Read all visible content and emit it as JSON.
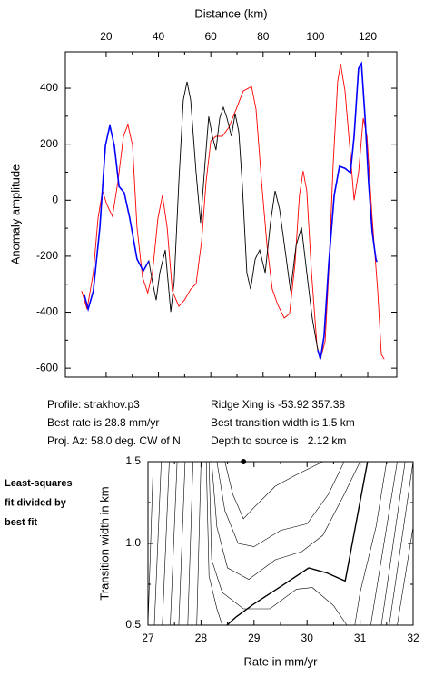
{
  "chart_data": [
    {
      "type": "line",
      "xlabel": "Distance (km)",
      "ylabel": "Anomaly amplitude",
      "xlim": [
        4.4,
        131.1
      ],
      "ylim": [
        -632,
        530
      ],
      "xticks": [
        20,
        40,
        60,
        80,
        100,
        120
      ],
      "yticks": [
        -600,
        -400,
        -200,
        0,
        200,
        400
      ],
      "series": [
        {
          "color": "#ff0000",
          "x": [
            10.6,
            12.7,
            15.1,
            16.9,
            18.6,
            20.3,
            22.4,
            24.5,
            26.6,
            28.3,
            30.1,
            31.8,
            33.9,
            35.9,
            37.7,
            39.8,
            41.5,
            43.3,
            45.3,
            47.8,
            49.9,
            52.3,
            54.4,
            56.5,
            58.2,
            60.0,
            62.0,
            64.4,
            66.9,
            69.7,
            72.4,
            75.6,
            77.3,
            79.4,
            81.5,
            83.5,
            85.6,
            88.1,
            90.1,
            92.2,
            93.9,
            95.3,
            96.7,
            98.5,
            100.6,
            101.9,
            103.7,
            105.1,
            106.8,
            108.5,
            109.6,
            111.3,
            113.1,
            114.8,
            116.5,
            118.3,
            119.7,
            121.7,
            123.8,
            125.2,
            126.3
          ],
          "values": [
            -324,
            -389,
            -259,
            -64,
            33,
            -16,
            -58,
            66,
            228,
            270,
            195,
            -97,
            -275,
            -331,
            -259,
            -64,
            17,
            -97,
            -324,
            -379,
            -357,
            -318,
            -298,
            -145,
            66,
            212,
            228,
            228,
            260,
            325,
            390,
            406,
            325,
            66,
            -162,
            -318,
            -373,
            -421,
            -405,
            -227,
            17,
            104,
            33,
            -259,
            -519,
            -568,
            -503,
            -259,
            131,
            423,
            488,
            390,
            195,
            0,
            98,
            293,
            228,
            -64,
            -324,
            -551,
            -568
          ]
        },
        {
          "color": "#000000",
          "x": [
            11.7,
            13.1,
            15.1,
            17.6,
            19.7,
            21.4,
            23.1,
            24.9,
            26.9,
            29.0,
            31.8,
            34.2,
            36.3,
            37.7,
            39.1,
            40.5,
            42.6,
            44.7,
            46.0,
            47.8,
            49.5,
            50.9,
            52.3,
            54.4,
            56.1,
            57.8,
            59.2,
            60.6,
            62.0,
            63.4,
            64.8,
            66.2,
            67.9,
            69.3,
            70.7,
            72.1,
            73.8,
            75.2,
            77.0,
            78.7,
            80.8,
            82.8,
            84.6,
            86.3,
            88.4,
            90.5,
            92.6,
            94.7,
            96.7,
            98.8,
            100.9,
            101.9,
            103.3,
            105.1,
            107.2,
            109.2,
            111.3,
            113.4,
            114.8,
            116.5,
            117.6,
            119.0,
            120.3,
            121.7,
            123.1,
            123.5
          ],
          "values": [
            -340,
            -389,
            -324,
            -97,
            195,
            267,
            195,
            49,
            27,
            -64,
            -210,
            -253,
            -217,
            -292,
            -357,
            -259,
            -178,
            -399,
            -292,
            66,
            358,
            423,
            358,
            98,
            -81,
            131,
            299,
            228,
            179,
            293,
            332,
            293,
            228,
            309,
            244,
            49,
            -259,
            -318,
            -210,
            -178,
            -259,
            -81,
            33,
            -32,
            -178,
            -324,
            -162,
            -97,
            -259,
            -421,
            -535,
            -568,
            -486,
            -227,
            17,
            121,
            114,
            98,
            228,
            471,
            488,
            293,
            66,
            -113,
            -210,
            -220
          ]
        },
        {
          "color": "#0000ff",
          "x": [
            11.7,
            13.1,
            15.1,
            17.6,
            19.7,
            21.4,
            23.1,
            24.9,
            26.9,
            29.0,
            31.8,
            34.2,
            36.3,
            37.7,
            39.1,
            40.5,
            42.6,
            44.7,
            46.0,
            47.8,
            49.5,
            50.9,
            52.3,
            54.4,
            56.1,
            57.8,
            59.2,
            60.6,
            62.0,
            63.4,
            64.8,
            66.2,
            67.9,
            69.3,
            70.7,
            72.1,
            73.8,
            75.2,
            77.0,
            78.7,
            80.8,
            82.8,
            84.6,
            86.3,
            88.4,
            90.5,
            92.6,
            94.7,
            96.7,
            98.8,
            100.9,
            101.9,
            103.3,
            105.1,
            107.2,
            109.2,
            111.3,
            113.4,
            114.8,
            116.5,
            117.6,
            119.0,
            120.3,
            121.7,
            123.1,
            123.5
          ],
          "values": [
            -340,
            -389,
            -324,
            -97,
            195,
            267,
            195,
            49,
            27,
            -64,
            -210,
            -253,
            -217,
            null,
            null,
            null,
            null,
            null,
            null,
            null,
            null,
            null,
            null,
            null,
            null,
            null,
            null,
            null,
            null,
            null,
            null,
            null,
            null,
            null,
            null,
            null,
            null,
            null,
            null,
            null,
            null,
            null,
            null,
            null,
            null,
            null,
            null,
            null,
            null,
            null,
            -535,
            -568,
            -486,
            -227,
            17,
            121,
            114,
            98,
            228,
            471,
            488,
            293,
            66,
            -113,
            -210,
            -220
          ]
        }
      ],
      "annotations": [
        "Profile: strakhov.p3",
        "Best rate is 28.8 mm/yr",
        "Proj. Az: 58.0 deg. CW of N",
        "Ridge Xing is -53.92 357.38",
        "Best transition width is 1.5 km",
        "Depth to source is   2.12 km"
      ]
    },
    {
      "type": "contour",
      "xlabel": "Rate in mm/yr",
      "ylabel": "Transition width in km",
      "title_lines": [
        "Least-squares",
        "fit divided by",
        "best fit"
      ],
      "xlim": [
        27,
        32
      ],
      "ylim": [
        0.5,
        1.5
      ],
      "xticks": [
        27,
        28,
        29,
        30,
        31,
        32
      ],
      "yticks": [
        0.5,
        {
          "value": 1,
          "label": "1.0"
        },
        1.5
      ],
      "points": {
        "x": [
          28.8
        ],
        "y": [
          1.5
        ]
      },
      "contours": [
        {
          "x": [
            27.1,
            27.0
          ],
          "y": [
            1.5,
            0.5
          ]
        },
        {
          "x": [
            27.25,
            27.12
          ],
          "y": [
            1.5,
            0.5
          ]
        },
        {
          "x": [
            27.4,
            27.27
          ],
          "y": [
            1.5,
            0.5
          ]
        },
        {
          "x": [
            27.55,
            27.42
          ],
          "y": [
            1.5,
            0.5
          ]
        },
        {
          "x": [
            27.7,
            27.58
          ],
          "y": [
            1.5,
            0.5
          ]
        },
        {
          "x": [
            27.85,
            27.75
          ],
          "y": [
            1.5,
            0.5
          ]
        },
        {
          "x": [
            28.0,
            27.92
          ],
          "y": [
            1.5,
            0.5
          ]
        },
        {
          "x": [
            28.1,
            28.15,
            28.3,
            28.4
          ],
          "y": [
            1.5,
            0.8,
            0.6,
            0.5
          ]
        },
        {
          "x": [
            28.15,
            28.2,
            28.4,
            28.8,
            29.3,
            29.8,
            30.1,
            30.5,
            30.75
          ],
          "y": [
            1.5,
            0.9,
            0.7,
            0.6,
            0.6,
            0.72,
            0.73,
            0.62,
            0.5
          ]
        },
        {
          "x": [
            28.2,
            28.3,
            28.5,
            28.9,
            29.4,
            29.9,
            30.3,
            30.7,
            31.0
          ],
          "y": [
            1.5,
            1.1,
            0.85,
            0.78,
            0.9,
            0.95,
            1.05,
            1.3,
            1.5
          ]
        },
        {
          "x": [
            28.3,
            28.45,
            28.7,
            29.0,
            29.5,
            30.0,
            30.4,
            30.7
          ],
          "y": [
            1.5,
            1.2,
            1.0,
            0.98,
            1.08,
            1.12,
            1.3,
            1.5
          ]
        },
        {
          "x": [
            28.45,
            28.6,
            28.8,
            29.0,
            29.4,
            29.8,
            30.3
          ],
          "y": [
            1.5,
            1.3,
            1.15,
            1.22,
            1.35,
            1.42,
            1.5
          ]
        },
        {
          "x": [
            28.49,
            28.66,
            29.0,
            29.52,
            30.03,
            30.37,
            30.72,
            31.14
          ],
          "y": [
            0.5,
            0.55,
            0.63,
            0.74,
            0.85,
            0.82,
            0.77,
            1.5
          ],
          "bold": true
        },
        {
          "x": [
            30.9,
            31.0,
            31.3,
            31.5
          ],
          "y": [
            0.5,
            0.7,
            1.1,
            1.5
          ]
        },
        {
          "x": [
            31.2,
            31.7
          ],
          "y": [
            0.5,
            1.5
          ]
        },
        {
          "x": [
            31.4,
            31.85
          ],
          "y": [
            0.5,
            1.5
          ]
        },
        {
          "x": [
            31.55,
            32.0
          ],
          "y": [
            0.5,
            1.5
          ]
        },
        {
          "x": [
            31.7,
            32.0
          ],
          "y": [
            0.5,
            1.1
          ]
        }
      ]
    }
  ]
}
